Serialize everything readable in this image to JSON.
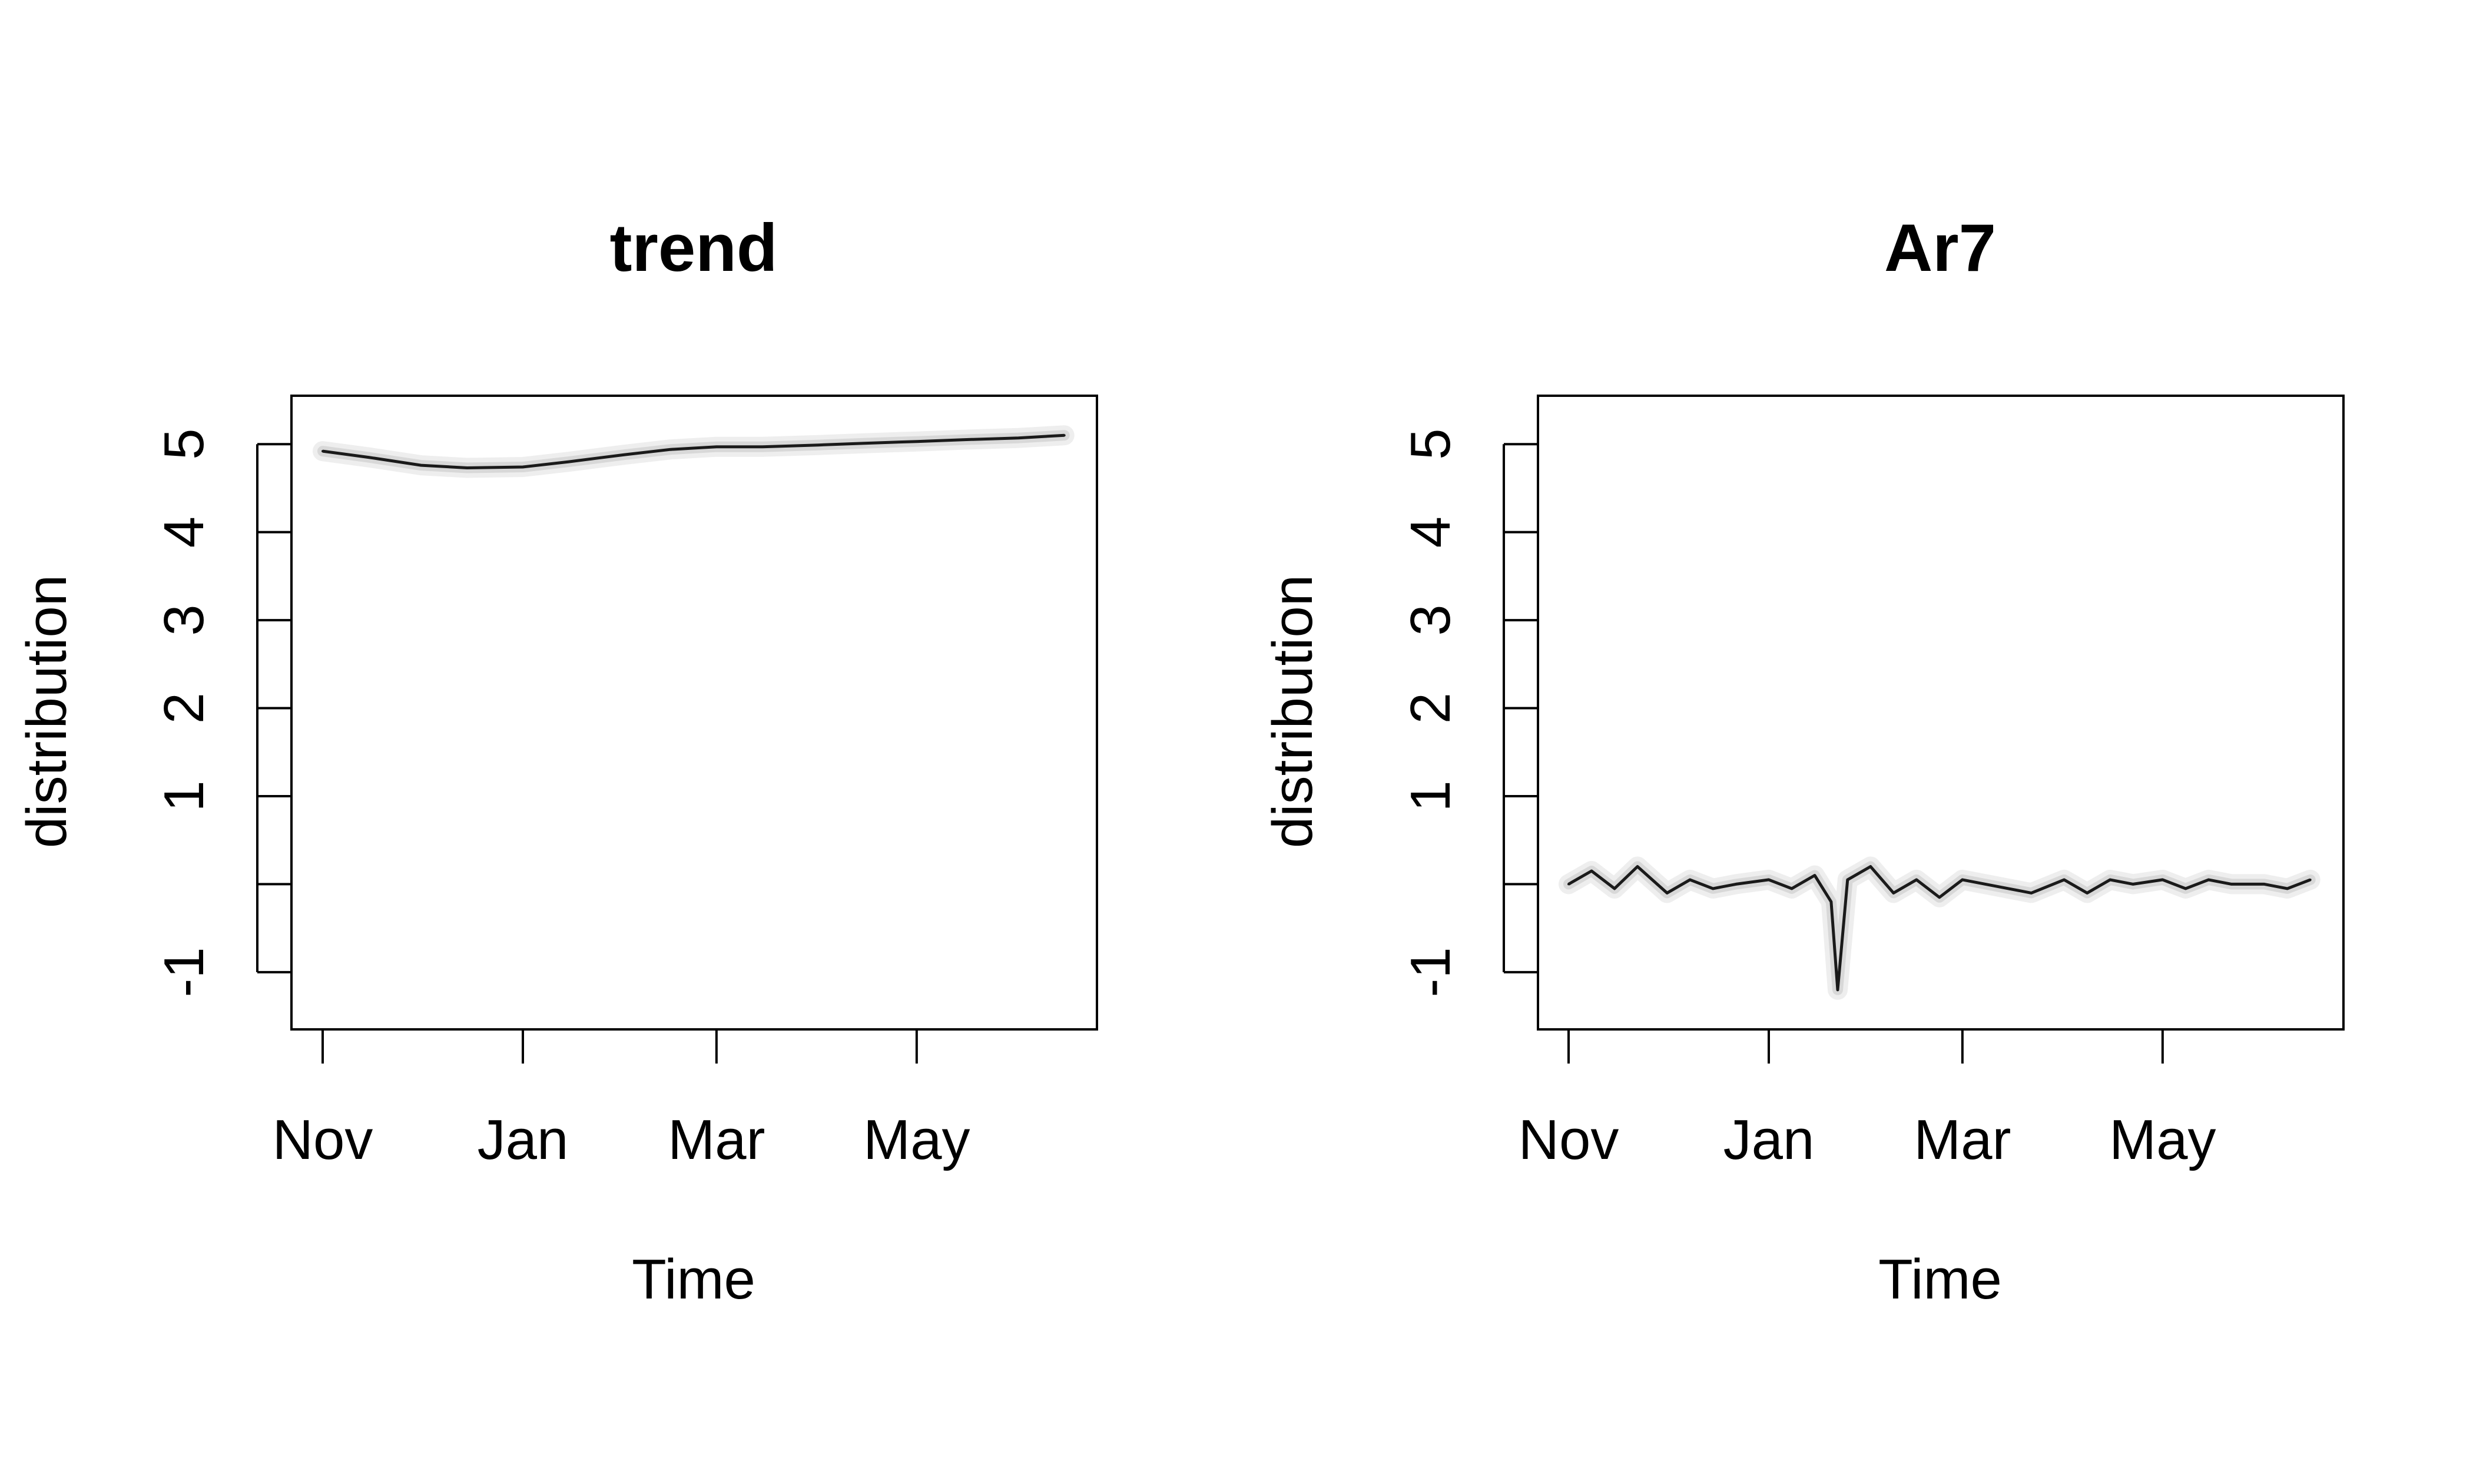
{
  "chart_data": [
    {
      "type": "line",
      "title": "trend",
      "xlabel": "Time",
      "ylabel": "distribution",
      "x_ticks": [
        "Nov",
        "Jan",
        "Mar",
        "May"
      ],
      "y_ticks": [
        "-1",
        "",
        "1",
        "2",
        "3",
        "4",
        "5"
      ],
      "ylim": [
        -1.65,
        5.55
      ],
      "series": [
        {
          "x": [
            "Nov 1",
            "Nov 15",
            "Dec 1",
            "Dec 15",
            "Jan 1",
            "Jan 15",
            "Feb 1",
            "Feb 15",
            "Mar 1",
            "Mar 15",
            "Apr 1",
            "Apr 15",
            "May 1",
            "May 15",
            "Jun 1",
            "Jun 15"
          ],
          "values": [
            4.92,
            4.85,
            4.76,
            4.73,
            4.74,
            4.8,
            4.88,
            4.94,
            4.97,
            4.97,
            4.99,
            5.01,
            5.03,
            5.05,
            5.07,
            5.1
          ]
        }
      ],
      "colors": {
        "line": "#1a1a1a",
        "band": "#bdbdbd"
      }
    },
    {
      "type": "line",
      "title": "Ar7",
      "xlabel": "Time",
      "ylabel": "distribution",
      "x_ticks": [
        "Nov",
        "Jan",
        "Mar",
        "May"
      ],
      "y_ticks": [
        "-1",
        "",
        "1",
        "2",
        "3",
        "4",
        "5"
      ],
      "ylim": [
        -1.65,
        5.55
      ],
      "series": [
        {
          "x": [
            "Nov 1",
            "Nov 8",
            "Nov 15",
            "Nov 22",
            "Dec 1",
            "Dec 8",
            "Dec 15",
            "Dec 22",
            "Jan 1",
            "Jan 8",
            "Jan 15",
            "Jan 20",
            "Jan 22",
            "Jan 25",
            "Feb 1",
            "Feb 8",
            "Feb 15",
            "Feb 22",
            "Mar 1",
            "Mar 8",
            "Mar 15",
            "Mar 22",
            "Apr 1",
            "Apr 8",
            "Apr 15",
            "Apr 22",
            "May 1",
            "May 8",
            "May 15",
            "May 22",
            "Jun 1",
            "Jun 8",
            "Jun 15"
          ],
          "values": [
            0.0,
            0.15,
            -0.05,
            0.2,
            -0.1,
            0.05,
            -0.05,
            0.0,
            0.05,
            -0.05,
            0.1,
            -0.2,
            -1.2,
            0.05,
            0.2,
            -0.1,
            0.05,
            -0.15,
            0.05,
            0.0,
            -0.05,
            -0.1,
            0.05,
            -0.1,
            0.05,
            0.0,
            0.05,
            -0.05,
            0.05,
            0.0,
            0.0,
            -0.05,
            0.05
          ]
        }
      ],
      "colors": {
        "line": "#1a1a1a",
        "band": "#bdbdbd"
      }
    }
  ]
}
